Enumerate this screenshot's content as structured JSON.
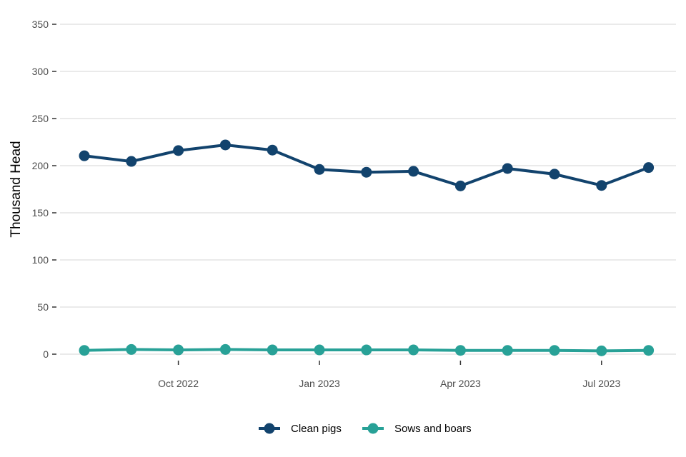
{
  "chart_data": {
    "type": "line",
    "title": "",
    "xlabel": "",
    "ylabel": "Thousand Head",
    "ylim": [
      0,
      350
    ],
    "yticks": [
      0,
      50,
      100,
      150,
      200,
      250,
      300,
      350
    ],
    "x": [
      "2022-08",
      "2022-09",
      "2022-10",
      "2022-11",
      "2022-12",
      "2023-01",
      "2023-02",
      "2023-03",
      "2023-04",
      "2023-05",
      "2023-06",
      "2023-07",
      "2023-08"
    ],
    "xticks": [
      {
        "x": "2022-10",
        "label": "Oct 2022"
      },
      {
        "x": "2023-01",
        "label": "Jan 2023"
      },
      {
        "x": "2023-04",
        "label": "Apr 2023"
      },
      {
        "x": "2023-07",
        "label": "Jul 2023"
      }
    ],
    "grid": true,
    "legend": "bottom",
    "series": [
      {
        "name": "Clean pigs",
        "color": "#12436D",
        "values": [
          210.5,
          204.5,
          216,
          222,
          216.5,
          196,
          193,
          194,
          178.5,
          197,
          191,
          179,
          198
        ]
      },
      {
        "name": "Sows and boars",
        "color": "#28A197",
        "values": [
          4,
          5,
          4.5,
          5,
          4.5,
          4.5,
          4.5,
          4.5,
          4,
          4,
          4,
          3.5,
          4
        ]
      }
    ]
  }
}
